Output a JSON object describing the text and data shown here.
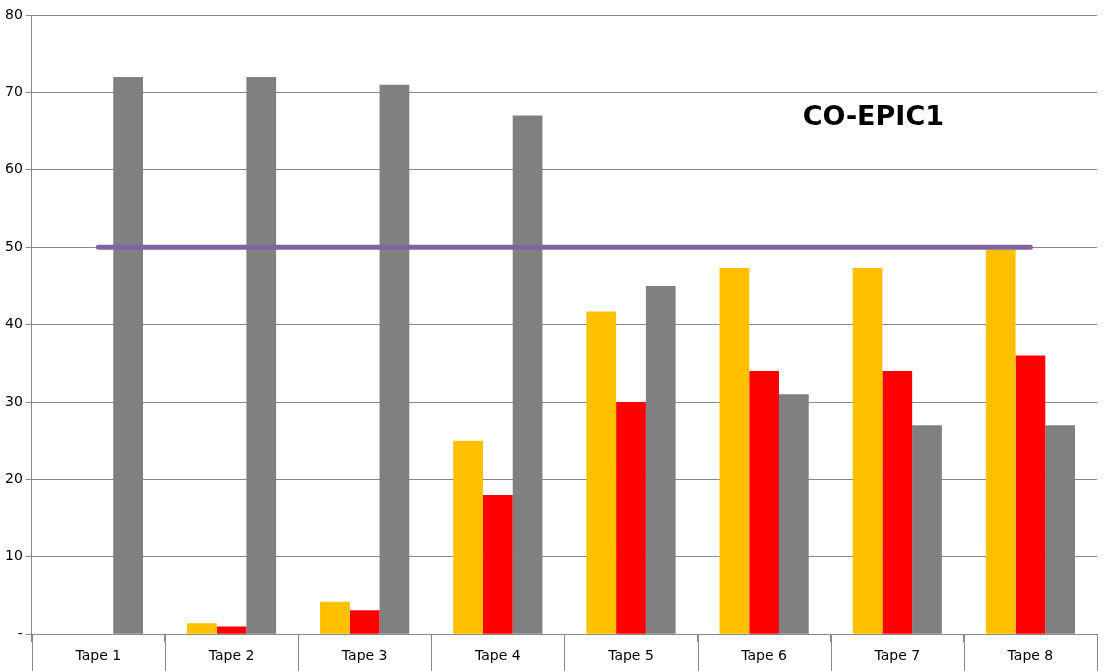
{
  "chart_data": {
    "type": "bar",
    "categories": [
      "Tape 1",
      "Tape 2",
      "Tape 3",
      "Tape 4",
      "Tape 5",
      "Tape 6",
      "Tape 7",
      "Tape 8"
    ],
    "series": [
      {
        "color": "#ffc000",
        "values": [
          0,
          1.4,
          4.2,
          25,
          41.7,
          47.3,
          47.3,
          49.7
        ]
      },
      {
        "color": "#ff0000",
        "values": [
          0,
          1,
          3.1,
          18,
          30,
          34,
          34,
          36
        ]
      },
      {
        "color": "#808080",
        "values": [
          72,
          72,
          71,
          67,
          45,
          31,
          27,
          27
        ]
      },
      {
        "type": "line",
        "color": "#8064a2",
        "values": [
          50,
          50,
          50,
          50,
          50,
          50,
          50,
          50
        ]
      }
    ],
    "ylim": [
      0,
      80
    ],
    "yticks": [
      {
        "value": 0,
        "label": "-"
      },
      10,
      20,
      30,
      40,
      50,
      60,
      70,
      80
    ],
    "grid": "y",
    "legend": false,
    "marker": "none",
    "annotations": [
      "CO-EPIC1"
    ]
  }
}
